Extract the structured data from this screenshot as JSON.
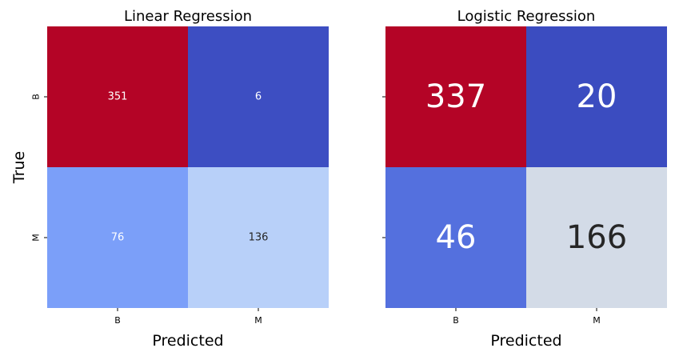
{
  "chart_data": [
    {
      "type": "heatmap",
      "title": "Linear Regression",
      "xlabel": "Predicted",
      "ylabel": "True",
      "x_categories": [
        "B",
        "M"
      ],
      "y_categories": [
        "B",
        "M"
      ],
      "values": [
        [
          351,
          6
        ],
        [
          76,
          136
        ]
      ],
      "cell_colors": [
        [
          "#b40426",
          "#3d4ec2"
        ],
        [
          "#7b9ff9",
          "#b8d0f9"
        ]
      ],
      "text_colors": [
        [
          "#ffffff",
          "#ffffff"
        ],
        [
          "#ffffff",
          "#262626"
        ]
      ],
      "colorbar": false
    },
    {
      "type": "heatmap",
      "title": "Logistic Regression",
      "xlabel": "Predicted",
      "ylabel": "",
      "x_categories": [
        "B",
        "M"
      ],
      "y_categories": [
        "B",
        "M"
      ],
      "values": [
        [
          337,
          20
        ],
        [
          46,
          166
        ]
      ],
      "cell_colors": [
        [
          "#b40426",
          "#3b4cc0"
        ],
        [
          "#5470de",
          "#d3dbe7"
        ]
      ],
      "text_colors": [
        [
          "#ffffff",
          "#ffffff"
        ],
        [
          "#ffffff",
          "#262626"
        ]
      ],
      "colorbar": false
    }
  ]
}
